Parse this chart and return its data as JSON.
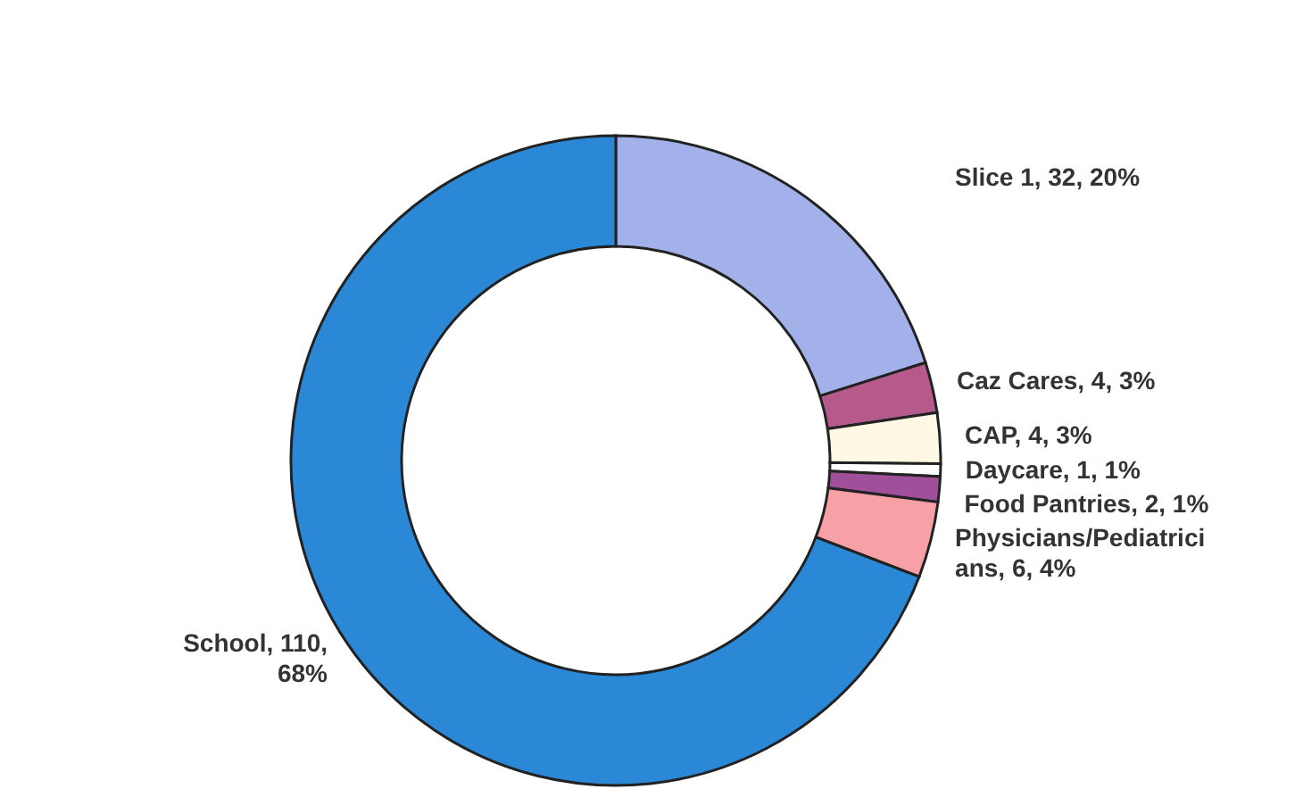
{
  "chart_data": {
    "type": "donut",
    "categories": [
      "Slice 1",
      "Caz Cares",
      "CAP",
      "Daycare",
      "Food Pantries",
      "Physicians/Pediatricians",
      "School"
    ],
    "values": [
      32,
      4,
      4,
      1,
      2,
      6,
      110
    ],
    "colors": [
      "#a3b1ea",
      "#b65a8c",
      "#fff8e4",
      "#ffffff",
      "#a0509a",
      "#f7a0a6",
      "#2a88d6"
    ],
    "value_labels": [
      "32, 20%",
      "4, 3%",
      "4, 3%",
      "1, 1%",
      "2, 1%",
      "6, 4%",
      "110, 68%"
    ]
  }
}
